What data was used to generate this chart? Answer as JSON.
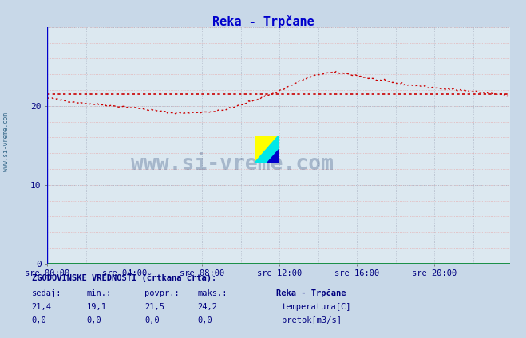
{
  "title": "Reka - Trpčane",
  "title_color": "#0000cc",
  "bg_color": "#c8d8e8",
  "plot_bg_color": "#dce8f0",
  "grid_color_major": "#b0b8c8",
  "grid_color_minor": "#e8a0a0",
  "xlim": [
    0,
    287
  ],
  "ylim": [
    0,
    30
  ],
  "yticks": [
    0,
    10,
    20
  ],
  "xtick_labels": [
    "sre 00:00",
    "sre 04:00",
    "sre 08:00",
    "sre 12:00",
    "sre 16:00",
    "sre 20:00"
  ],
  "xtick_positions": [
    0,
    48,
    96,
    144,
    192,
    240
  ],
  "avg_line_value": 21.5,
  "temp_color": "#cc0000",
  "pretok_color": "#00aa00",
  "watermark_text": "www.si-vreme.com",
  "sidebar_text": "www.si-vreme.com",
  "footer_title": "ZGODOVINSKE VREDNOSTI (črtkana črta):",
  "footer_cols": [
    "sedaj:",
    "min.:",
    "povpr.:",
    "maks.:"
  ],
  "footer_temp": [
    "21,4",
    "19,1",
    "21,5",
    "24,2"
  ],
  "footer_pretok": [
    "0,0",
    "0,0",
    "0,0",
    "0,0"
  ],
  "legend_station": "Reka - Trpčane",
  "legend_temp": "temperatura[C]",
  "legend_pretok": "pretok[m3/s]",
  "temp_pts_x": [
    0,
    10,
    30,
    60,
    80,
    95,
    110,
    125,
    135,
    150,
    165,
    175,
    185,
    200,
    220,
    240,
    265,
    287
  ],
  "temp_pts_y": [
    21.0,
    20.7,
    20.2,
    19.6,
    19.1,
    19.2,
    19.5,
    20.5,
    21.2,
    22.5,
    23.8,
    24.2,
    24.1,
    23.5,
    22.8,
    22.3,
    21.8,
    21.3
  ]
}
